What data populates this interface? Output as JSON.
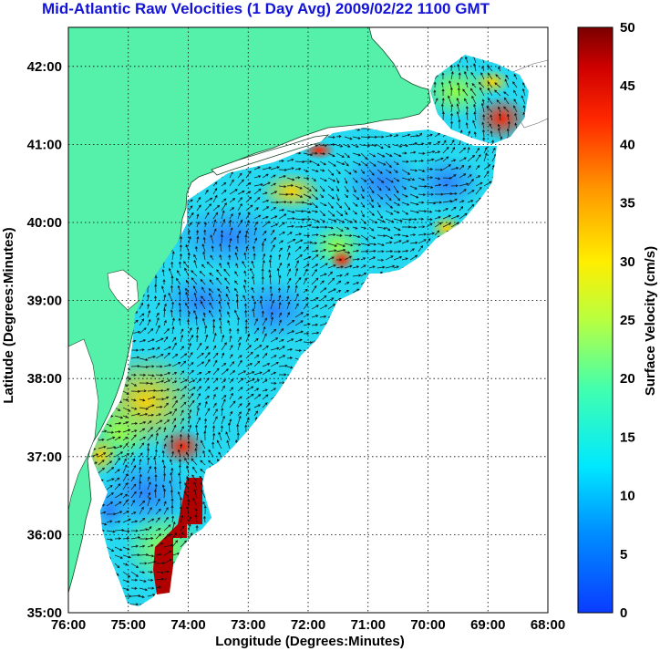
{
  "title": "Mid-Atlantic Raw Velocities (1 Day Avg) 2009/02/22 1100 GMT",
  "xlabel": "Longitude (Degrees:Minutes)",
  "ylabel": "Latitude (Degrees:Minutes)",
  "colorbar_label": "Surface Velocity (cm/s)",
  "x_ticks": [
    "76:00",
    "75:00",
    "74:00",
    "73:00",
    "72:00",
    "71:00",
    "70:00",
    "69:00",
    "68:00"
  ],
  "y_ticks": [
    "42:00",
    "41:00",
    "40:00",
    "39:00",
    "38:00",
    "37:00",
    "36:00",
    "35:00"
  ],
  "colorbar_ticks": [
    "50",
    "45",
    "40",
    "35",
    "30",
    "25",
    "20",
    "15",
    "10",
    "5",
    "0"
  ],
  "colors": {
    "land": "#55f0aa",
    "title": "#1414d6",
    "water_background": "#ffffff",
    "grid": "#000000"
  },
  "chart_data": {
    "type": "heatmap",
    "title": "Mid-Atlantic Raw Velocities (1 Day Avg) 2009/02/22 1100 GMT",
    "xlabel": "Longitude (Degrees:Minutes)",
    "ylabel": "Latitude (Degrees:Minutes)",
    "xlim": [
      -76,
      -68
    ],
    "ylim": [
      35,
      42.5
    ],
    "colorbar": {
      "label": "Surface Velocity (cm/s)",
      "range": [
        0,
        50
      ],
      "colormap": "jet"
    },
    "grid": true,
    "overlay": "velocity vector arrows"
  }
}
